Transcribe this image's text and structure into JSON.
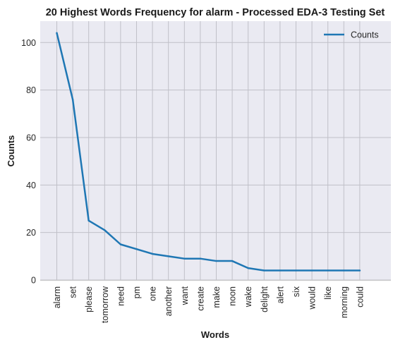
{
  "chart_data": {
    "type": "line",
    "title": "20 Highest Words Frequency for alarm - Processed EDA-3 Testing Set",
    "xlabel": "Words",
    "ylabel": "Counts",
    "categories": [
      "alarm",
      "set",
      "please",
      "tomorrow",
      "need",
      "pm",
      "one",
      "another",
      "want",
      "create",
      "make",
      "noon",
      "wake",
      "delight",
      "alert",
      "six",
      "would",
      "like",
      "morning",
      "could"
    ],
    "series": [
      {
        "name": "Counts",
        "values": [
          104,
          76,
          25,
          21,
          15,
          13,
          11,
          10,
          9,
          9,
          8,
          8,
          5,
          4,
          4,
          4,
          4,
          4,
          4,
          4
        ]
      }
    ],
    "ylim": [
      0,
      109
    ],
    "yticks": [
      0,
      20,
      40,
      60,
      80,
      100
    ],
    "grid": true,
    "legend": "top-right",
    "colors": {
      "line": "#1f77b4",
      "background": "#eaeaf2",
      "grid": "#c0c0c8",
      "spine": "#c8c8c8"
    }
  }
}
